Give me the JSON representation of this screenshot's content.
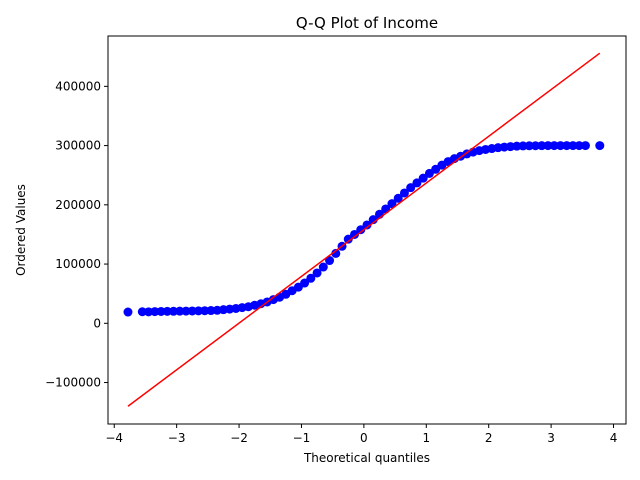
{
  "chart_data": {
    "type": "scatter",
    "title": "Q-Q Plot of Income",
    "xlabel": "Theoretical quantiles",
    "ylabel": "Ordered Values",
    "xlim": [
      -4.1,
      4.2
    ],
    "ylim": [
      -170000,
      485000
    ],
    "xticks": [
      -4,
      -3,
      -2,
      -1,
      0,
      1,
      2,
      3,
      4
    ],
    "xtick_labels": [
      "−4",
      "−3",
      "−2",
      "−1",
      "0",
      "1",
      "2",
      "3",
      "4"
    ],
    "yticks": [
      -100000,
      0,
      100000,
      200000,
      300000,
      400000
    ],
    "ytick_labels": [
      "−100000",
      "0",
      "100000",
      "200000",
      "300000",
      "400000"
    ],
    "grid": false,
    "series": [
      {
        "kind": "points",
        "color": "#0000ff",
        "points": [
          [
            -3.78,
            19000
          ],
          [
            -3.55,
            19500
          ],
          [
            -3.45,
            19300
          ],
          [
            -3.35,
            19800
          ],
          [
            -3.25,
            20000
          ],
          [
            -3.15,
            20200
          ],
          [
            -3.05,
            20300
          ],
          [
            -2.95,
            20500
          ],
          [
            -2.85,
            20600
          ],
          [
            -2.75,
            20800
          ],
          [
            -2.65,
            21000
          ],
          [
            -2.55,
            21200
          ],
          [
            -2.45,
            21500
          ],
          [
            -2.35,
            22000
          ],
          [
            -2.25,
            23000
          ],
          [
            -2.15,
            24000
          ],
          [
            -2.05,
            25000
          ],
          [
            -1.95,
            26500
          ],
          [
            -1.85,
            28000
          ],
          [
            -1.75,
            30500
          ],
          [
            -1.65,
            33000
          ],
          [
            -1.55,
            36000
          ],
          [
            -1.45,
            40000
          ],
          [
            -1.35,
            44000
          ],
          [
            -1.25,
            49000
          ],
          [
            -1.15,
            55000
          ],
          [
            -1.05,
            61000
          ],
          [
            -0.95,
            68000
          ],
          [
            -0.85,
            76000
          ],
          [
            -0.75,
            85000
          ],
          [
            -0.65,
            95000
          ],
          [
            -0.55,
            106000
          ],
          [
            -0.45,
            118000
          ],
          [
            -0.35,
            130000
          ],
          [
            -0.25,
            142000
          ],
          [
            -0.15,
            150000
          ],
          [
            -0.05,
            158000
          ],
          [
            0.05,
            166000
          ],
          [
            0.15,
            175000
          ],
          [
            0.25,
            184000
          ],
          [
            0.35,
            193000
          ],
          [
            0.45,
            202000
          ],
          [
            0.55,
            211000
          ],
          [
            0.65,
            220000
          ],
          [
            0.75,
            229000
          ],
          [
            0.85,
            237000
          ],
          [
            0.95,
            245000
          ],
          [
            1.05,
            253000
          ],
          [
            1.15,
            260000
          ],
          [
            1.25,
            267000
          ],
          [
            1.35,
            273000
          ],
          [
            1.45,
            278000
          ],
          [
            1.55,
            282000
          ],
          [
            1.65,
            286000
          ],
          [
            1.75,
            289000
          ],
          [
            1.85,
            291500
          ],
          [
            1.95,
            293500
          ],
          [
            2.05,
            295000
          ],
          [
            2.15,
            296500
          ],
          [
            2.25,
            297500
          ],
          [
            2.35,
            298300
          ],
          [
            2.45,
            299000
          ],
          [
            2.55,
            299500
          ],
          [
            2.65,
            299700
          ],
          [
            2.75,
            299800
          ],
          [
            2.85,
            299900
          ],
          [
            2.95,
            300000
          ],
          [
            3.05,
            300000
          ],
          [
            3.15,
            300000
          ],
          [
            3.25,
            300000
          ],
          [
            3.35,
            300000
          ],
          [
            3.45,
            300000
          ],
          [
            3.55,
            300000
          ],
          [
            3.78,
            300000
          ]
        ]
      },
      {
        "kind": "line",
        "color": "#ff0000",
        "points": [
          [
            -3.78,
            -140000
          ],
          [
            3.78,
            456000
          ]
        ]
      }
    ]
  }
}
